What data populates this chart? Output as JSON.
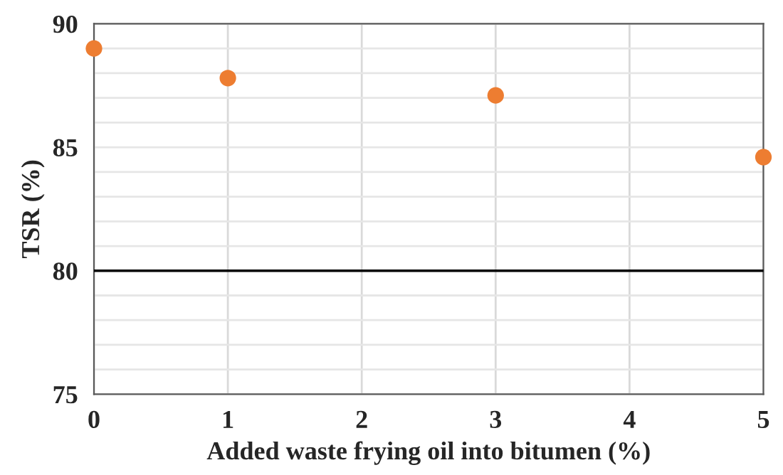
{
  "chart_data": {
    "type": "scatter",
    "xlabel": "Added waste frying oil into bitumen (%)",
    "ylabel": "TSR (%)",
    "x": [
      0,
      1,
      3,
      5
    ],
    "series": [
      {
        "color": "#ed7d31",
        "values": [
          89.0,
          87.8,
          87.1,
          84.6
        ]
      }
    ],
    "xlim": [
      0,
      5
    ],
    "xticks": [
      0,
      1,
      2,
      3,
      4,
      5
    ],
    "ylim": [
      75,
      90
    ],
    "yticks": [
      75,
      80,
      85,
      90
    ],
    "ref_lines": [
      {
        "axis": "y",
        "value": 80,
        "color": "#000000"
      }
    ],
    "grid": true,
    "marker": "circle",
    "legend": false
  }
}
